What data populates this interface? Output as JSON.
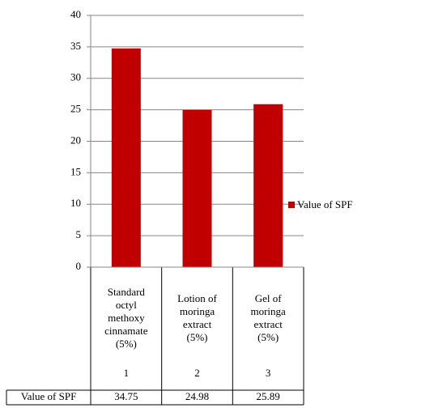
{
  "chart_data": {
    "type": "bar",
    "categories": [
      "Standard octyl methoxy cinnamate (5%)",
      "Lotion of moringa extract (5%)",
      "Gel of moringa extract (5%)"
    ],
    "category_numbers": [
      "1",
      "2",
      "3"
    ],
    "series": [
      {
        "name": "Value of SPF",
        "color": "#c00000",
        "values": [
          34.75,
          24.98,
          25.89
        ]
      }
    ],
    "ylim": [
      0,
      40
    ],
    "yticks": [
      0,
      5,
      10,
      15,
      20,
      25,
      30,
      35,
      40
    ],
    "grid": true,
    "legend": "right",
    "data_table": true
  }
}
